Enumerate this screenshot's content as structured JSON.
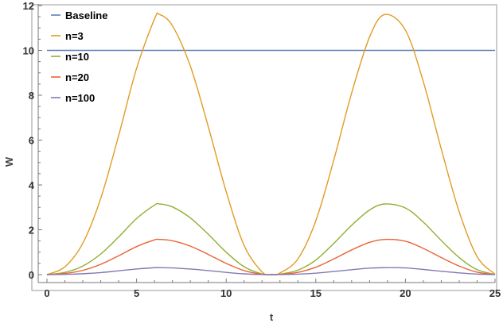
{
  "chart_data": {
    "type": "line",
    "title": "",
    "xlabel": "t",
    "ylabel": "W",
    "xlim": [
      0,
      25
    ],
    "ylim": [
      0,
      12
    ],
    "xticks": [
      0,
      5,
      10,
      15,
      20,
      25
    ],
    "yticks": [
      0,
      2,
      4,
      6,
      8,
      10,
      12
    ],
    "grid": false,
    "legend_position": "top-left",
    "series": [
      {
        "name": "Baseline",
        "color": "#5E81B5",
        "x": [
          0,
          25
        ],
        "y": [
          10,
          10
        ]
      },
      {
        "name": "n=3",
        "color": "#E19C24",
        "x": [
          0,
          1,
          2,
          3,
          4,
          5,
          6,
          6.28,
          7,
          8,
          9,
          10,
          11,
          12,
          12.57,
          13,
          14,
          15,
          16,
          17,
          18,
          18.85,
          20,
          21,
          22,
          23,
          24,
          25
        ],
        "y": [
          0,
          0.35,
          1.4,
          3.4,
          6.2,
          9.2,
          11.4,
          11.6,
          11.1,
          9.3,
          6.6,
          3.7,
          1.3,
          0.12,
          0,
          0.07,
          0.7,
          2.4,
          5.1,
          8.1,
          10.6,
          11.6,
          10.9,
          8.6,
          5.6,
          2.8,
          0.8,
          0.02
        ]
      },
      {
        "name": "n=10",
        "color": "#8FB032",
        "x": [
          0,
          1,
          2,
          3,
          4,
          5,
          6,
          6.28,
          7,
          8,
          9,
          10,
          11,
          12,
          12.57,
          13,
          14,
          15,
          16,
          17,
          18,
          18.85,
          20,
          21,
          22,
          23,
          24,
          25
        ],
        "y": [
          0,
          0.1,
          0.38,
          0.92,
          1.68,
          2.5,
          3.1,
          3.15,
          3.02,
          2.53,
          1.8,
          1.0,
          0.35,
          0.03,
          0,
          0.02,
          0.2,
          0.65,
          1.39,
          2.2,
          2.88,
          3.15,
          2.97,
          2.34,
          1.52,
          0.76,
          0.22,
          0.005
        ]
      },
      {
        "name": "n=20",
        "color": "#EB6235",
        "x": [
          0,
          1,
          2,
          3,
          4,
          5,
          6,
          6.28,
          7,
          8,
          9,
          10,
          11,
          12,
          12.57,
          13,
          14,
          15,
          16,
          17,
          18,
          18.85,
          20,
          21,
          22,
          23,
          24,
          25
        ],
        "y": [
          0,
          0.05,
          0.19,
          0.46,
          0.84,
          1.25,
          1.55,
          1.57,
          1.51,
          1.27,
          0.9,
          0.5,
          0.18,
          0.015,
          0,
          0.01,
          0.1,
          0.33,
          0.7,
          1.1,
          1.44,
          1.57,
          1.49,
          1.17,
          0.76,
          0.38,
          0.11,
          0.003
        ]
      },
      {
        "name": "n=100",
        "color": "#8778B3",
        "x": [
          0,
          1,
          2,
          3,
          4,
          5,
          6,
          6.28,
          7,
          8,
          9,
          10,
          11,
          12,
          12.57,
          13,
          14,
          15,
          16,
          17,
          18,
          18.85,
          20,
          21,
          22,
          23,
          24,
          25
        ],
        "y": [
          0,
          0.01,
          0.04,
          0.09,
          0.17,
          0.25,
          0.31,
          0.31,
          0.3,
          0.25,
          0.18,
          0.1,
          0.035,
          0.003,
          0,
          0.002,
          0.02,
          0.065,
          0.14,
          0.22,
          0.29,
          0.31,
          0.3,
          0.23,
          0.15,
          0.076,
          0.022,
          0.001
        ]
      }
    ]
  }
}
